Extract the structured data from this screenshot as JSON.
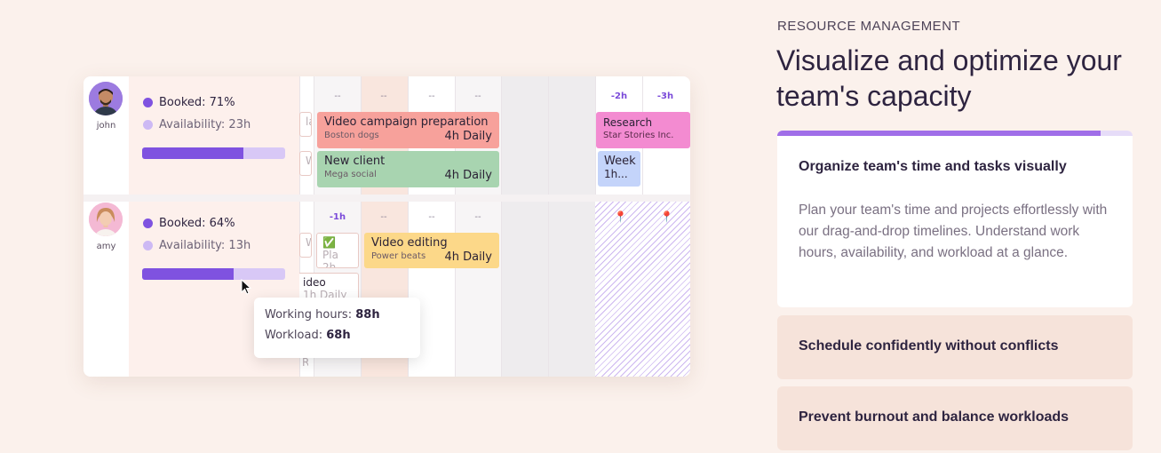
{
  "section": {
    "eyebrow": "RESOURCE MANAGEMENT",
    "headline": "Visualize and optimize your team's capacity"
  },
  "features": [
    {
      "title": "Organize team's time and tasks visually",
      "description": "Plan your team's time and projects effortlessly with our drag-and-drop timelines. Understand work hours, availability, and workload at a glance.",
      "expanded": true,
      "progress": 0.91
    },
    {
      "title": "Schedule confidently without conflicts",
      "expanded": false
    },
    {
      "title": "Prevent burnout and balance workloads",
      "expanded": false
    }
  ],
  "illustration": {
    "people": [
      {
        "name": "john",
        "booked": "Booked: 71%",
        "availability": "Availability: 23h",
        "booked_fraction": 0.71
      },
      {
        "name": "amy",
        "booked": "Booked: 64%",
        "availability": "Availability: 13h",
        "booked_fraction": 0.64
      }
    ],
    "row1_header": [
      "--",
      "--",
      "--",
      "--",
      "-2h",
      "-3h"
    ],
    "row2_header": [
      "-1h",
      "--",
      "--",
      "--"
    ],
    "tasks": {
      "video_campaign": {
        "title": "Video campaign preparation",
        "client": "Boston dogs",
        "hours": "4h Daily",
        "color": "#f7a19b"
      },
      "new_client": {
        "title": "New client",
        "client": "Mega social",
        "hours": "4h Daily",
        "color": "#a8d4b0"
      },
      "research": {
        "title": "Research",
        "client": "Star Stories Inc.",
        "color": "#f38bd1"
      },
      "week": {
        "title": "Week",
        "hours": "1h...",
        "color": "#c4d4fa"
      },
      "video_editing": {
        "title": "Video editing",
        "client": "Power beats",
        "hours": "4h Daily",
        "color": "#fcd889"
      }
    },
    "ghosts": {
      "la": "la",
      "we1": "We",
      "we2": "We",
      "pla": "✅ Pla",
      "pla_hours": "2h...",
      "ideo": "ideo",
      "ideo_hours": "1h Daily",
      "r": "R"
    },
    "tooltip": {
      "working_label": "Working hours:",
      "working_value": "88h",
      "workload_label": "Workload:",
      "workload_value": "68h"
    },
    "colors": {
      "accent": "#7f52e0",
      "accent_light": "#d8c8f6",
      "background": "#fbf1ec"
    }
  }
}
